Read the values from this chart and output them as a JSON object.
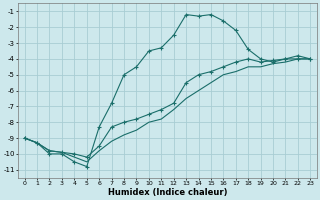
{
  "xlabel": "Humidex (Indice chaleur)",
  "background_color": "#cde8ec",
  "grid_color": "#a8cdd4",
  "line_color": "#1a6e6a",
  "xlim": [
    -0.5,
    23.5
  ],
  "ylim": [
    -11.5,
    -0.5
  ],
  "xticks": [
    0,
    1,
    2,
    3,
    4,
    5,
    6,
    7,
    8,
    9,
    10,
    11,
    12,
    13,
    14,
    15,
    16,
    17,
    18,
    19,
    20,
    21,
    22,
    23
  ],
  "yticks": [
    -11,
    -10,
    -9,
    -8,
    -7,
    -6,
    -5,
    -4,
    -3,
    -2,
    -1
  ],
  "line1_x": [
    0,
    1,
    2,
    3,
    4,
    5,
    6,
    7,
    8,
    9,
    10,
    11,
    12,
    13,
    14,
    15,
    16,
    17,
    18,
    19,
    20,
    21,
    22,
    23
  ],
  "line1_y": [
    -9.0,
    -9.3,
    -10.0,
    -10.0,
    -10.5,
    -10.8,
    -8.3,
    -6.8,
    -5.0,
    -4.5,
    -3.5,
    -3.3,
    -2.5,
    -1.2,
    -1.3,
    -1.2,
    -1.6,
    -2.2,
    -3.4,
    -4.0,
    -4.2,
    -4.0,
    -3.8,
    -4.0
  ],
  "line2_x": [
    0,
    1,
    2,
    3,
    4,
    5,
    6,
    7,
    8,
    9,
    10,
    11,
    12,
    13,
    14,
    15,
    16,
    17,
    18,
    19,
    20,
    21,
    22,
    23
  ],
  "line2_y": [
    -9.0,
    -9.3,
    -9.8,
    -9.9,
    -10.0,
    -10.2,
    -9.5,
    -8.3,
    -8.0,
    -7.8,
    -7.5,
    -7.2,
    -6.8,
    -5.5,
    -5.0,
    -4.8,
    -4.5,
    -4.2,
    -4.0,
    -4.2,
    -4.1,
    -4.0,
    -4.0,
    -4.0
  ],
  "line3_x": [
    0,
    1,
    2,
    3,
    4,
    5,
    6,
    7,
    8,
    9,
    10,
    11,
    12,
    13,
    14,
    15,
    16,
    17,
    18,
    19,
    20,
    21,
    22,
    23
  ],
  "line3_y": [
    -9.0,
    -9.3,
    -9.8,
    -9.9,
    -10.2,
    -10.5,
    -9.8,
    -9.2,
    -8.8,
    -8.5,
    -8.0,
    -7.8,
    -7.2,
    -6.5,
    -6.0,
    -5.5,
    -5.0,
    -4.8,
    -4.5,
    -4.5,
    -4.3,
    -4.2,
    -4.0,
    -4.0
  ]
}
